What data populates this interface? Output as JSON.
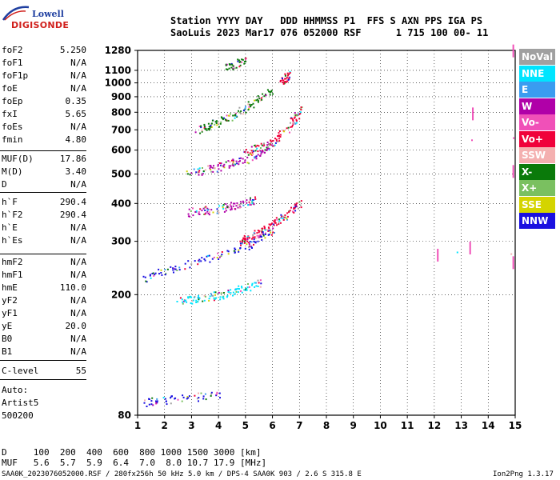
{
  "logo": {
    "line1": "Lowell",
    "line2": "DIGISONDE"
  },
  "header": {
    "line1": "Station YYYY DAY   DDD HHMMSS P1  FFS S AXN PPS IGA PS",
    "line2": "SaoLuis 2023 Mar17 076 052000 RSF      1 715 100 00- 11"
  },
  "params_group1": [
    {
      "label": "foF2",
      "value": "5.250"
    },
    {
      "label": "foF1",
      "value": "N/A"
    },
    {
      "label": "foF1p",
      "value": "N/A"
    },
    {
      "label": "foE",
      "value": "N/A"
    },
    {
      "label": "foEp",
      "value": "0.35"
    },
    {
      "label": "fxI",
      "value": "5.65"
    },
    {
      "label": "foEs",
      "value": "N/A"
    },
    {
      "label": "fmin",
      "value": "4.80"
    }
  ],
  "params_group2": [
    {
      "label": "MUF(D)",
      "value": "17.86"
    },
    {
      "label": "M(D)",
      "value": "3.40"
    },
    {
      "label": "D",
      "value": "N/A"
    }
  ],
  "params_group3": [
    {
      "label": "h`F",
      "value": "290.4"
    },
    {
      "label": "h`F2",
      "value": "290.4"
    },
    {
      "label": "h`E",
      "value": "N/A"
    },
    {
      "label": "h`Es",
      "value": "N/A"
    }
  ],
  "params_group4": [
    {
      "label": "hmF2",
      "value": "N/A"
    },
    {
      "label": "hmF1",
      "value": "N/A"
    },
    {
      "label": "hmE",
      "value": "110.0"
    },
    {
      "label": "yF2",
      "value": "N/A"
    },
    {
      "label": "yF1",
      "value": "N/A"
    },
    {
      "label": "yE",
      "value": "20.0"
    },
    {
      "label": "B0",
      "value": "N/A"
    },
    {
      "label": "B1",
      "value": "N/A"
    }
  ],
  "clevel": {
    "label": "C-level",
    "value": "55"
  },
  "auto": {
    "line1": "Auto:",
    "line2": "Artist5",
    "line3": "500200"
  },
  "legend": [
    {
      "label": "NoVal",
      "color": "#a0a0a0"
    },
    {
      "label": "NNE",
      "color": "#00e5ff"
    },
    {
      "label": "E",
      "color": "#3a9cf0"
    },
    {
      "label": "W",
      "color": "#b000a8"
    },
    {
      "label": "Vo-",
      "color": "#f050b8"
    },
    {
      "label": "Vo+",
      "color": "#f0003a"
    },
    {
      "label": "SSW",
      "color": "#f4b0b0"
    },
    {
      "label": "X-",
      "color": "#0a7a0a"
    },
    {
      "label": "X+",
      "color": "#7ac060"
    },
    {
      "label": "SSE",
      "color": "#d4d400"
    },
    {
      "label": "NNW",
      "color": "#1a10e0"
    }
  ],
  "footer": {
    "d_line": "D     100  200  400  600  800 1000 1500 3000 [km]",
    "muf_line": "MUF   5.6  5.7  5.9  6.4  7.0  8.0 10.7 17.9 [MHz]",
    "file_line": "SAA0K_2023076052000.RSF / 280fx256h 50 kHz 5.0 km / DPS-4 SAA0K 903 / 2.6 S 315.8 E",
    "version": "Ion2Png 1.3.17"
  },
  "chart_data": {
    "type": "scatter",
    "title": "",
    "xlabel": "",
    "ylabel": "",
    "xlim": [
      1,
      15
    ],
    "ylim": [
      80,
      1280
    ],
    "y_scale": "log",
    "x_ticks": [
      "1",
      "2",
      "3",
      "4",
      "5",
      "6",
      "7",
      "8",
      "9",
      "10",
      "11",
      "12",
      "13",
      "14",
      "15"
    ],
    "y_ticks": [
      "80",
      "200",
      "300",
      "400",
      "500",
      "600",
      "700",
      "800",
      "900",
      "1000",
      "1100",
      "1280"
    ],
    "grid": true,
    "series": [
      {
        "name": "Vo+",
        "color": "#f0003a",
        "traces": [
          {
            "freq": [
              4.8,
              5.0,
              5.3,
              5.6,
              6.0,
              6.4,
              6.8,
              7.0
            ],
            "height": [
              300,
              305,
              315,
              325,
              340,
              360,
              385,
              405
            ]
          },
          {
            "freq": [
              5.0,
              5.5,
              6.0,
              6.5,
              6.8,
              7.0
            ],
            "height": [
              600,
              615,
              640,
              700,
              760,
              820
            ]
          },
          {
            "freq": [
              6.3,
              6.5,
              6.6
            ],
            "height": [
              1000,
              1040,
              1070
            ]
          }
        ]
      },
      {
        "name": "NNW",
        "color": "#1a10e0",
        "traces": [
          {
            "freq": [
              1.2,
              2.0,
              3.0,
              4.0,
              5.0,
              5.5,
              6.0
            ],
            "height": [
              225,
              240,
              255,
              270,
              290,
              305,
              330
            ]
          },
          {
            "freq": [
              1.2,
              2.0,
              3.0,
              4.0
            ],
            "height": [
              88,
              90,
              92,
              93
            ]
          }
        ]
      },
      {
        "name": "W",
        "color": "#b000a8",
        "traces": [
          {
            "freq": [
              2.8,
              3.5,
              4.0,
              4.5,
              5.0,
              5.5
            ],
            "height": [
              375,
              380,
              385,
              395,
              405,
              420
            ]
          },
          {
            "freq": [
              2.8,
              3.5,
              4.0,
              4.5,
              5.0,
              5.5,
              6.0
            ],
            "height": [
              505,
              515,
              530,
              545,
              560,
              590,
              630
            ]
          }
        ]
      },
      {
        "name": "NNE",
        "color": "#00e5ff",
        "traces": [
          {
            "freq": [
              2.5,
              3.0,
              3.5,
              4.0,
              4.5,
              5.0,
              5.5
            ],
            "height": [
              190,
              193,
              196,
              200,
              205,
              212,
              220
            ]
          }
        ]
      },
      {
        "name": "X-",
        "color": "#0a7a0a",
        "traces": [
          {
            "freq": [
              3.2,
              3.6,
              4.0,
              4.5,
              5.0,
              5.5,
              6.0
            ],
            "height": [
              700,
              720,
              745,
              780,
              830,
              890,
              950
            ]
          },
          {
            "freq": [
              4.2,
              4.6,
              5.0
            ],
            "height": [
              1120,
              1150,
              1190
            ]
          }
        ]
      },
      {
        "name": "Vo-",
        "color": "#f050b8",
        "traces": [
          {
            "freq": [
              12.1,
              13.3,
              13.4
            ],
            "height": [
              270,
              285,
              790
            ]
          },
          {
            "freq": [
              14.9,
              14.9,
              14.9
            ],
            "height": [
              255,
              510,
              1275
            ]
          }
        ]
      }
    ]
  }
}
